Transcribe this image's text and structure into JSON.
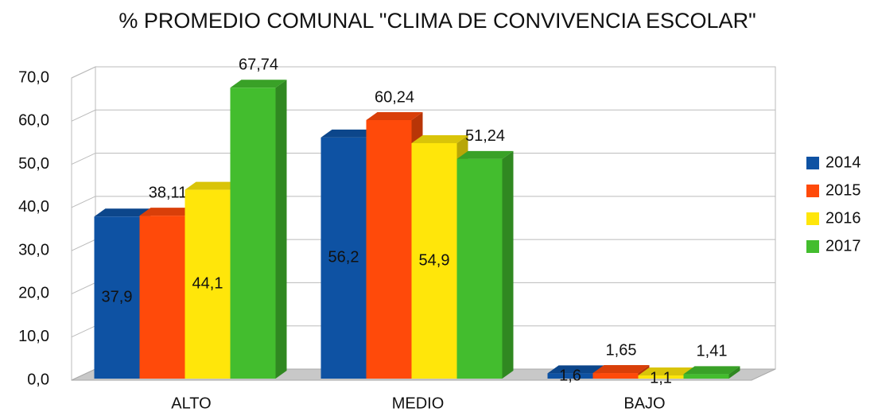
{
  "chart_data": {
    "type": "bar3d",
    "title": "% PROMEDIO COMUNAL \"CLIMA DE CONVIVENCIA ESCOLAR\"",
    "categories": [
      "ALTO",
      "MEDIO",
      "BAJO"
    ],
    "series": [
      {
        "name": "2014",
        "color": "#0e52a3",
        "values": [
          37.9,
          56.2,
          1.6
        ],
        "value_labels": [
          "37,9",
          "56,2",
          "1,6"
        ]
      },
      {
        "name": "2015",
        "color": "#ff4a0a",
        "values": [
          38.11,
          60.24,
          1.65
        ],
        "value_labels": [
          "38,11",
          "60,24",
          "1,65"
        ]
      },
      {
        "name": "2016",
        "color": "#ffe60a",
        "values": [
          44.1,
          54.9,
          1.1
        ],
        "value_labels": [
          "44,1",
          "54,9",
          "1,1"
        ]
      },
      {
        "name": "2017",
        "color": "#43bd2e",
        "values": [
          67.74,
          51.24,
          1.41
        ],
        "value_labels": [
          "67,74",
          "51,24",
          "1,41"
        ]
      }
    ],
    "ylim": [
      0,
      70
    ],
    "yticks": [
      {
        "value": 0,
        "label": "0,0"
      },
      {
        "value": 10,
        "label": "10,0"
      },
      {
        "value": 20,
        "label": "20,0"
      },
      {
        "value": 30,
        "label": "30,0"
      },
      {
        "value": 40,
        "label": "40,0"
      },
      {
        "value": 50,
        "label": "50,0"
      },
      {
        "value": 60,
        "label": "60,0"
      },
      {
        "value": 70,
        "label": "70,0"
      }
    ],
    "grid": true,
    "legend": "right"
  }
}
